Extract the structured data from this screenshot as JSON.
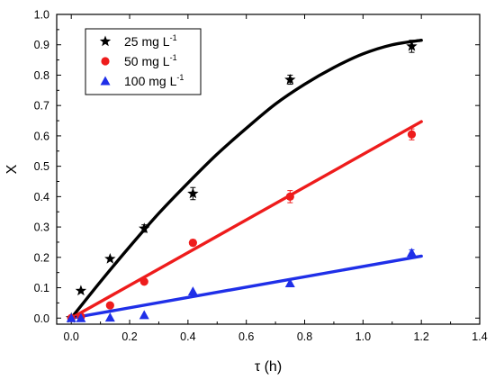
{
  "chart_data": {
    "type": "scatter",
    "xlabel": "τ (h)",
    "ylabel": "X",
    "xlim": [
      -0.05,
      1.4
    ],
    "ylim": [
      -0.02,
      1.0
    ],
    "xticks": [
      "0.0",
      "0.2",
      "0.4",
      "0.6",
      "0.8",
      "1.0",
      "1.2",
      "1.4"
    ],
    "yticks": [
      "0.0",
      "0.1",
      "0.2",
      "0.3",
      "0.4",
      "0.5",
      "0.6",
      "0.7",
      "0.8",
      "0.9",
      "1.0"
    ],
    "legend_position": "top-left",
    "series": [
      {
        "name": "25 mg L",
        "name_sup": "-1",
        "marker": "star",
        "color": "#000000",
        "x": [
          0.0,
          0.033,
          0.133,
          0.25,
          0.417,
          0.75,
          1.167
        ],
        "y": [
          0.0,
          0.09,
          0.195,
          0.295,
          0.41,
          0.785,
          0.895
        ],
        "err": [
          0.0,
          0.0,
          0.0,
          0.012,
          0.02,
          0.015,
          0.02
        ],
        "fit": {
          "x": [
            0.0,
            0.1,
            0.2,
            0.3,
            0.4,
            0.5,
            0.6,
            0.7,
            0.8,
            0.9,
            1.0,
            1.1,
            1.2
          ],
          "y": [
            0.0,
            0.12,
            0.235,
            0.345,
            0.445,
            0.54,
            0.625,
            0.705,
            0.77,
            0.825,
            0.87,
            0.9,
            0.915
          ]
        }
      },
      {
        "name": "50 mg L",
        "name_sup": "-1",
        "marker": "circle",
        "color": "#ee1c1c",
        "x": [
          0.0,
          0.033,
          0.133,
          0.25,
          0.417,
          0.75,
          1.167
        ],
        "y": [
          0.0,
          0.005,
          0.042,
          0.12,
          0.248,
          0.4,
          0.605
        ],
        "err": [
          0.0,
          0.0,
          0.0,
          0.0,
          0.01,
          0.02,
          0.018
        ],
        "fit": {
          "x": [
            0.0,
            1.2
          ],
          "y": [
            0.0,
            0.647
          ]
        }
      },
      {
        "name": "100 mg L",
        "name_sup": "-1",
        "marker": "triangle",
        "color": "#1f2fe8",
        "x": [
          0.0,
          0.033,
          0.133,
          0.25,
          0.417,
          0.75,
          1.167
        ],
        "y": [
          0.0,
          0.0,
          0.002,
          0.01,
          0.088,
          0.115,
          0.215
        ],
        "err": [
          0.0,
          0.0,
          0.0,
          0.0,
          0.0,
          0.0,
          0.01
        ],
        "fit": {
          "x": [
            0.0,
            1.2
          ],
          "y": [
            0.0,
            0.204
          ]
        }
      }
    ]
  }
}
